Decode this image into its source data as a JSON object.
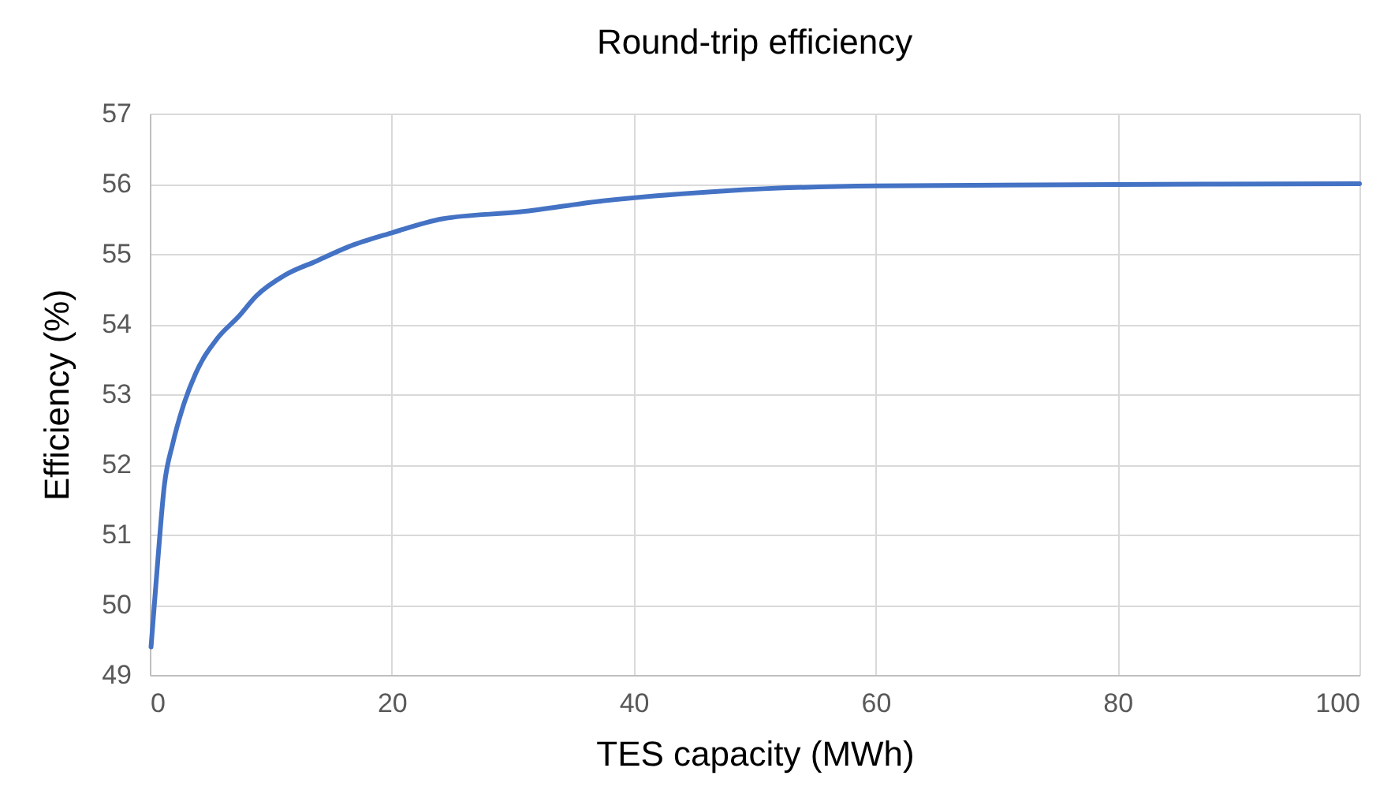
{
  "chart_data": {
    "type": "line",
    "title": "Round-trip efficiency",
    "xlabel": "TES capacity (MWh)",
    "ylabel": "Efficiency (%)",
    "x": [
      0.1,
      0.6,
      1.2,
      1.9,
      2.7,
      3.8,
      5.6,
      7.3,
      8.8,
      11.2,
      13.8,
      16.4,
      20,
      24.2,
      30.7,
      37.2,
      47.7,
      60,
      80,
      100
    ],
    "series": [
      {
        "color": "#4472c4",
        "values": [
          49.4,
          50.5,
          51.7,
          52.3,
          52.8,
          53.3,
          53.8,
          54.1,
          54.4,
          54.7,
          54.9,
          55.1,
          55.3,
          55.5,
          55.6,
          55.75,
          55.9,
          55.97,
          55.99,
          56.0
        ]
      }
    ],
    "xlim": [
      0,
      100
    ],
    "xticks": [
      0,
      20,
      40,
      60,
      80,
      100
    ],
    "ylim": [
      49,
      57
    ],
    "yticks": [
      49,
      50,
      51,
      52,
      53,
      54,
      55,
      56,
      57
    ],
    "grid": true,
    "legend": false,
    "marker": "none",
    "line_style": "solid"
  }
}
